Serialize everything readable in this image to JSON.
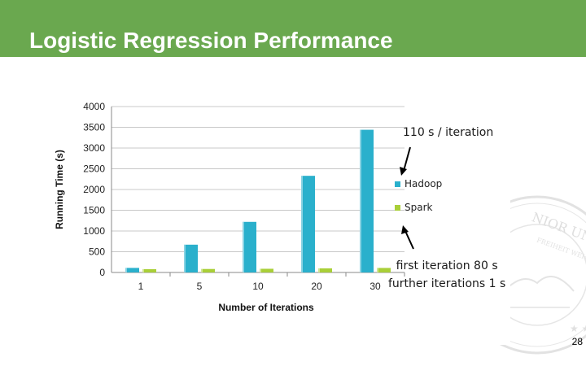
{
  "slide": {
    "title": "Logistic Regression Performance",
    "page_number": "28",
    "header_color": "#6aa84f"
  },
  "annotations": {
    "top": "110 s / iteration",
    "bottom_line1": "first iteration 80 s",
    "bottom_line2": "further iterations 1 s"
  },
  "chart_data": {
    "type": "bar",
    "title": "",
    "xlabel": "Number of Iterations",
    "ylabel": "Running Time (s)",
    "categories": [
      "1",
      "5",
      "10",
      "20",
      "30"
    ],
    "series": [
      {
        "name": "Hadoop",
        "color": "#2ab0cc",
        "values": [
          110,
          670,
          1220,
          2330,
          3440
        ]
      },
      {
        "name": "Spark",
        "color": "#a9cf38",
        "values": [
          80,
          84,
          89,
          99,
          109
        ]
      }
    ],
    "ylim": [
      0,
      4000
    ],
    "yticks": [
      0,
      500,
      1000,
      1500,
      2000,
      2500,
      3000,
      3500,
      4000
    ],
    "grid": true,
    "legend_position": "right"
  }
}
